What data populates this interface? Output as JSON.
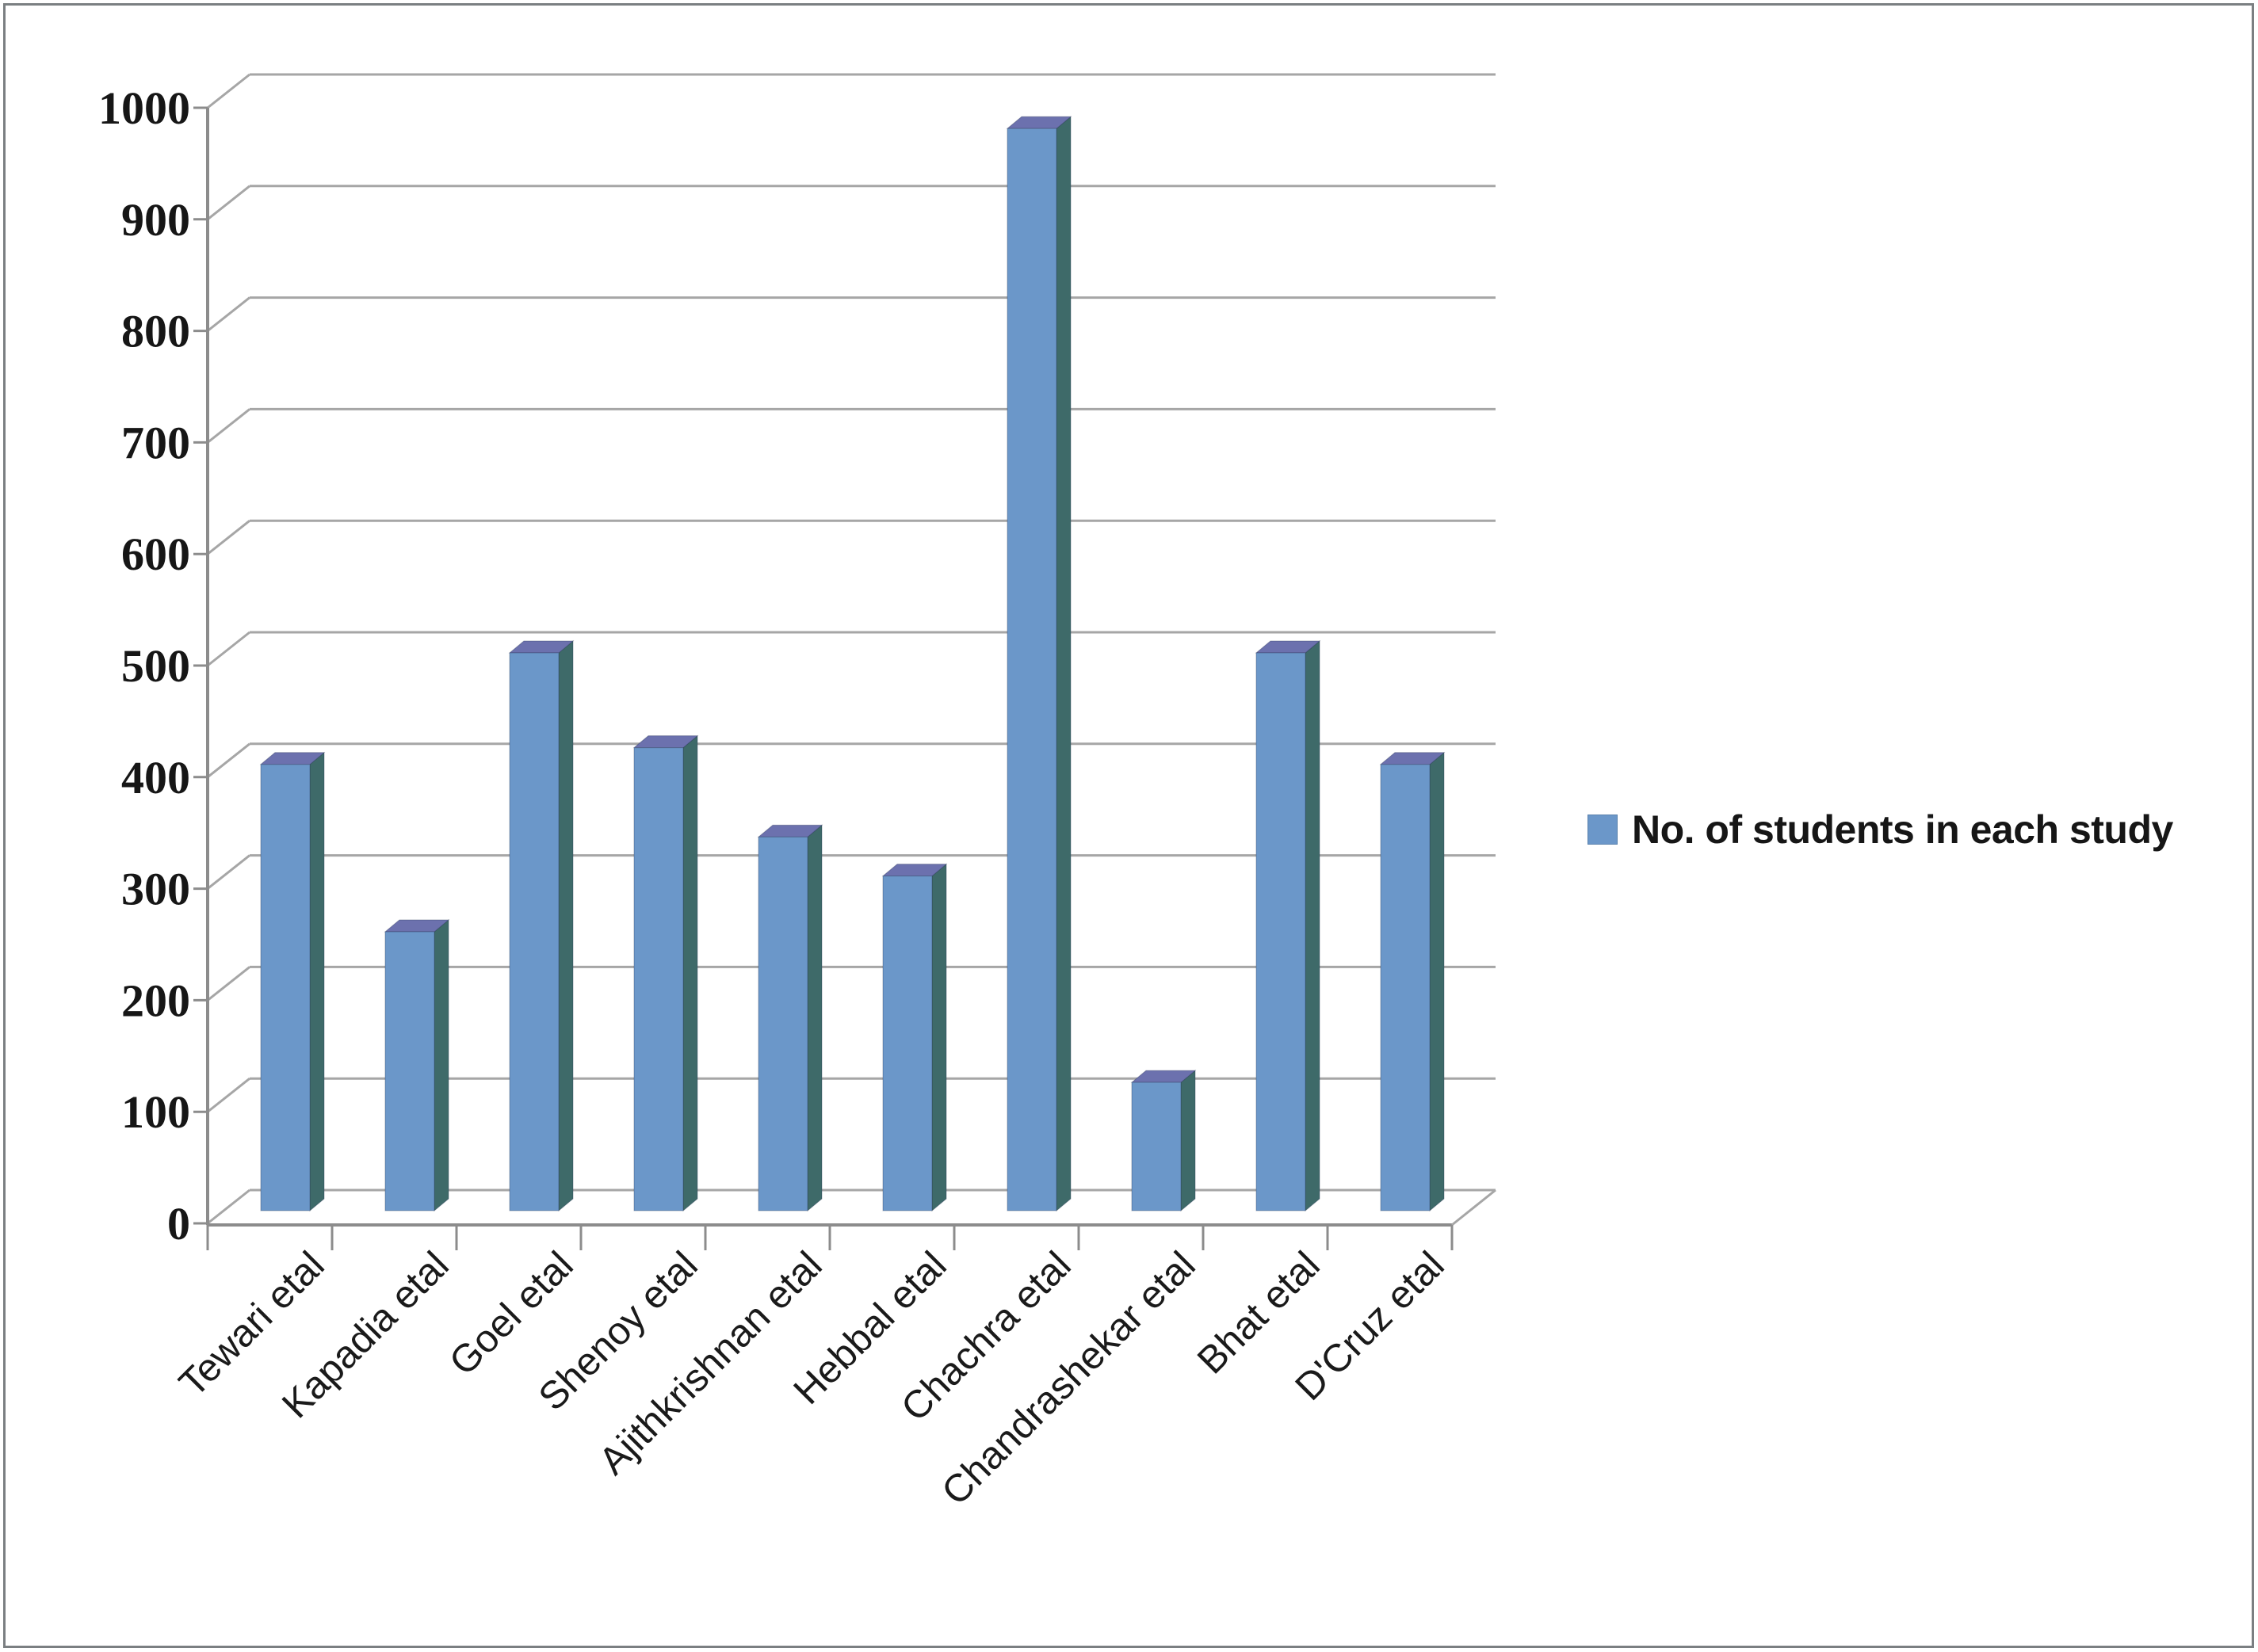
{
  "chart_data": {
    "type": "bar",
    "style": "3d-column",
    "title": "",
    "xlabel": "",
    "ylabel": "",
    "categories": [
      "Tewari etal",
      "Kapadia etal",
      "Goel etal",
      "Shenoy etal",
      "Ajithkrishnan etal",
      "Hebbal etal",
      "Chachra etal",
      "Chandrashekar etal",
      "Bhat etal",
      "D'Cruz etal"
    ],
    "series": [
      {
        "name": "No. of students in each study",
        "values": [
          400,
          250,
          500,
          415,
          335,
          300,
          970,
          115,
          500,
          400
        ]
      }
    ],
    "ylim": [
      0,
      1000
    ],
    "ytick_step": 100,
    "yticks": [
      0,
      100,
      200,
      300,
      400,
      500,
      600,
      700,
      800,
      900,
      1000
    ],
    "grid": true,
    "legend_position": "right"
  },
  "legend": {
    "label": "No. of students in each study",
    "marker_color": "#6B97C9"
  },
  "colors": {
    "bar_front": "#6B97C9",
    "bar_top": "#6C71AE",
    "bar_side": "#3E6A69",
    "bar_edge": "rgba(35,50,80,0.35)",
    "gridline": "#A6A6A6",
    "axis": "#8C8C8C",
    "text": "#161616",
    "background": "#FFFFFF",
    "border": "#7B7F82"
  }
}
